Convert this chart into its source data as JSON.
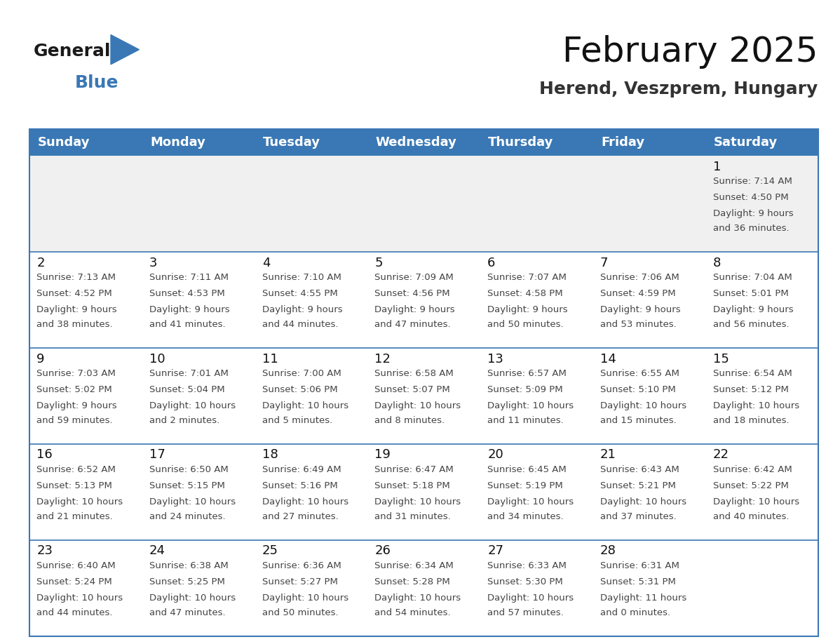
{
  "title": "February 2025",
  "subtitle": "Herend, Veszprem, Hungary",
  "header_color": "#3A78B5",
  "header_text_color": "#FFFFFF",
  "cell_bg_color": "#FFFFFF",
  "alt_cell_bg_color": "#F0F0F0",
  "border_color": "#3A78B5",
  "days_of_week": [
    "Sunday",
    "Monday",
    "Tuesday",
    "Wednesday",
    "Thursday",
    "Friday",
    "Saturday"
  ],
  "calendar_data": [
    [
      null,
      null,
      null,
      null,
      null,
      null,
      {
        "day": 1,
        "sunrise": "7:14 AM",
        "sunset": "4:50 PM",
        "daylight_line1": "9 hours",
        "daylight_line2": "and 36 minutes."
      }
    ],
    [
      {
        "day": 2,
        "sunrise": "7:13 AM",
        "sunset": "4:52 PM",
        "daylight_line1": "9 hours",
        "daylight_line2": "and 38 minutes."
      },
      {
        "day": 3,
        "sunrise": "7:11 AM",
        "sunset": "4:53 PM",
        "daylight_line1": "9 hours",
        "daylight_line2": "and 41 minutes."
      },
      {
        "day": 4,
        "sunrise": "7:10 AM",
        "sunset": "4:55 PM",
        "daylight_line1": "9 hours",
        "daylight_line2": "and 44 minutes."
      },
      {
        "day": 5,
        "sunrise": "7:09 AM",
        "sunset": "4:56 PM",
        "daylight_line1": "9 hours",
        "daylight_line2": "and 47 minutes."
      },
      {
        "day": 6,
        "sunrise": "7:07 AM",
        "sunset": "4:58 PM",
        "daylight_line1": "9 hours",
        "daylight_line2": "and 50 minutes."
      },
      {
        "day": 7,
        "sunrise": "7:06 AM",
        "sunset": "4:59 PM",
        "daylight_line1": "9 hours",
        "daylight_line2": "and 53 minutes."
      },
      {
        "day": 8,
        "sunrise": "7:04 AM",
        "sunset": "5:01 PM",
        "daylight_line1": "9 hours",
        "daylight_line2": "and 56 minutes."
      }
    ],
    [
      {
        "day": 9,
        "sunrise": "7:03 AM",
        "sunset": "5:02 PM",
        "daylight_line1": "9 hours",
        "daylight_line2": "and 59 minutes."
      },
      {
        "day": 10,
        "sunrise": "7:01 AM",
        "sunset": "5:04 PM",
        "daylight_line1": "10 hours",
        "daylight_line2": "and 2 minutes."
      },
      {
        "day": 11,
        "sunrise": "7:00 AM",
        "sunset": "5:06 PM",
        "daylight_line1": "10 hours",
        "daylight_line2": "and 5 minutes."
      },
      {
        "day": 12,
        "sunrise": "6:58 AM",
        "sunset": "5:07 PM",
        "daylight_line1": "10 hours",
        "daylight_line2": "and 8 minutes."
      },
      {
        "day": 13,
        "sunrise": "6:57 AM",
        "sunset": "5:09 PM",
        "daylight_line1": "10 hours",
        "daylight_line2": "and 11 minutes."
      },
      {
        "day": 14,
        "sunrise": "6:55 AM",
        "sunset": "5:10 PM",
        "daylight_line1": "10 hours",
        "daylight_line2": "and 15 minutes."
      },
      {
        "day": 15,
        "sunrise": "6:54 AM",
        "sunset": "5:12 PM",
        "daylight_line1": "10 hours",
        "daylight_line2": "and 18 minutes."
      }
    ],
    [
      {
        "day": 16,
        "sunrise": "6:52 AM",
        "sunset": "5:13 PM",
        "daylight_line1": "10 hours",
        "daylight_line2": "and 21 minutes."
      },
      {
        "day": 17,
        "sunrise": "6:50 AM",
        "sunset": "5:15 PM",
        "daylight_line1": "10 hours",
        "daylight_line2": "and 24 minutes."
      },
      {
        "day": 18,
        "sunrise": "6:49 AM",
        "sunset": "5:16 PM",
        "daylight_line1": "10 hours",
        "daylight_line2": "and 27 minutes."
      },
      {
        "day": 19,
        "sunrise": "6:47 AM",
        "sunset": "5:18 PM",
        "daylight_line1": "10 hours",
        "daylight_line2": "and 31 minutes."
      },
      {
        "day": 20,
        "sunrise": "6:45 AM",
        "sunset": "5:19 PM",
        "daylight_line1": "10 hours",
        "daylight_line2": "and 34 minutes."
      },
      {
        "day": 21,
        "sunrise": "6:43 AM",
        "sunset": "5:21 PM",
        "daylight_line1": "10 hours",
        "daylight_line2": "and 37 minutes."
      },
      {
        "day": 22,
        "sunrise": "6:42 AM",
        "sunset": "5:22 PM",
        "daylight_line1": "10 hours",
        "daylight_line2": "and 40 minutes."
      }
    ],
    [
      {
        "day": 23,
        "sunrise": "6:40 AM",
        "sunset": "5:24 PM",
        "daylight_line1": "10 hours",
        "daylight_line2": "and 44 minutes."
      },
      {
        "day": 24,
        "sunrise": "6:38 AM",
        "sunset": "5:25 PM",
        "daylight_line1": "10 hours",
        "daylight_line2": "and 47 minutes."
      },
      {
        "day": 25,
        "sunrise": "6:36 AM",
        "sunset": "5:27 PM",
        "daylight_line1": "10 hours",
        "daylight_line2": "and 50 minutes."
      },
      {
        "day": 26,
        "sunrise": "6:34 AM",
        "sunset": "5:28 PM",
        "daylight_line1": "10 hours",
        "daylight_line2": "and 54 minutes."
      },
      {
        "day": 27,
        "sunrise": "6:33 AM",
        "sunset": "5:30 PM",
        "daylight_line1": "10 hours",
        "daylight_line2": "and 57 minutes."
      },
      {
        "day": 28,
        "sunrise": "6:31 AM",
        "sunset": "5:31 PM",
        "daylight_line1": "11 hours",
        "daylight_line2": "and 0 minutes."
      },
      null
    ]
  ],
  "logo_general_color": "#1a1a1a",
  "logo_blue_color": "#3A78B5",
  "title_fontsize": 36,
  "subtitle_fontsize": 18,
  "day_header_fontsize": 13,
  "day_number_fontsize": 13,
  "cell_text_fontsize": 9.5
}
